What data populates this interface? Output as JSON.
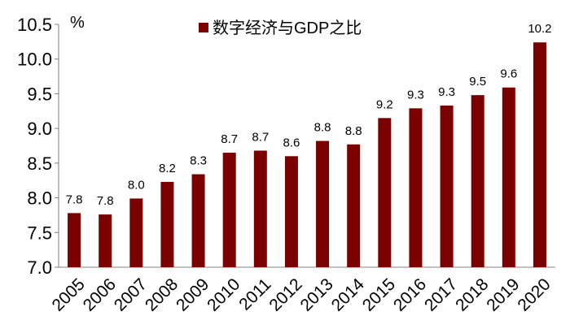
{
  "chart_data": {
    "type": "bar",
    "unit_label": "%",
    "categories": [
      "2005",
      "2006",
      "2007",
      "2008",
      "2009",
      "2010",
      "2011",
      "2012",
      "2013",
      "2014",
      "2015",
      "2016",
      "2017",
      "2018",
      "2019",
      "2020"
    ],
    "series": [
      {
        "name": "数字经济与GDP之比",
        "values": [
          7.78,
          7.76,
          7.99,
          8.23,
          8.34,
          8.65,
          8.68,
          8.6,
          8.82,
          8.77,
          9.15,
          9.29,
          9.33,
          9.48,
          9.59,
          10.24
        ],
        "data_labels": [
          "7.8",
          "7.8",
          "8.0",
          "8.2",
          "8.3",
          "8.7",
          "8.7",
          "8.6",
          "8.8",
          "8.8",
          "9.2",
          "9.3",
          "9.3",
          "9.5",
          "9.6",
          "10.2"
        ],
        "color": "#7b0000"
      }
    ],
    "ylim": [
      7.0,
      10.5
    ],
    "yticks": [
      7.0,
      7.5,
      8.0,
      8.5,
      9.0,
      9.5,
      10.0,
      10.5
    ],
    "ytick_labels": [
      "7.0",
      "7.5",
      "8.0",
      "8.5",
      "9.0",
      "9.5",
      "10.0",
      "10.5"
    ],
    "legend_position": "top-center",
    "grid": false
  }
}
